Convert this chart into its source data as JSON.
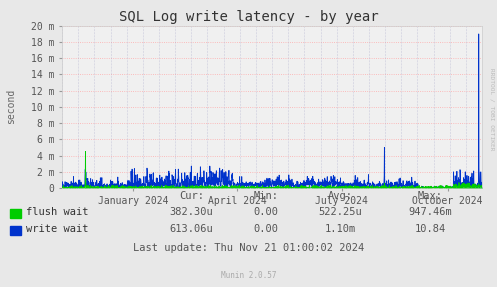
{
  "title": "SQL Log write latency - by year",
  "ylabel": "second",
  "background_color": "#e8e8e8",
  "plot_bg_color": "#f0f0f0",
  "grid_color_h": "#ffaaaa",
  "grid_color_v": "#aaaacc",
  "ytick_labels": [
    "0",
    "2 m",
    "4 m",
    "6 m",
    "8 m",
    "10 m",
    "12 m",
    "14 m",
    "16 m",
    "18 m",
    "20 m"
  ],
  "ytick_values": [
    0,
    2,
    4,
    6,
    8,
    10,
    12,
    14,
    16,
    18,
    20
  ],
  "ylim": [
    0,
    20
  ],
  "xtick_labels": [
    "January 2024",
    "April 2024",
    "July 2024",
    "October 2024"
  ],
  "flush_color": "#00cc00",
  "write_color": "#0033cc",
  "write_fill_color": "#aabbee",
  "legend_flush": "flush wait",
  "legend_write": "write wait",
  "cur_flush": "382.30u",
  "min_flush": "0.00",
  "avg_flush": "522.25u",
  "max_flush": "947.46m",
  "cur_write": "613.06u",
  "min_write": "0.00",
  "avg_write": "1.10m",
  "max_write": "10.84",
  "last_update": "Last update: Thu Nov 21 01:00:02 2024",
  "munin_version": "Munin 2.0.57",
  "rrdtool_text": "RRDTOOL / TOBI OETIKER",
  "title_fontsize": 10,
  "axis_fontsize": 7,
  "legend_fontsize": 7.5
}
